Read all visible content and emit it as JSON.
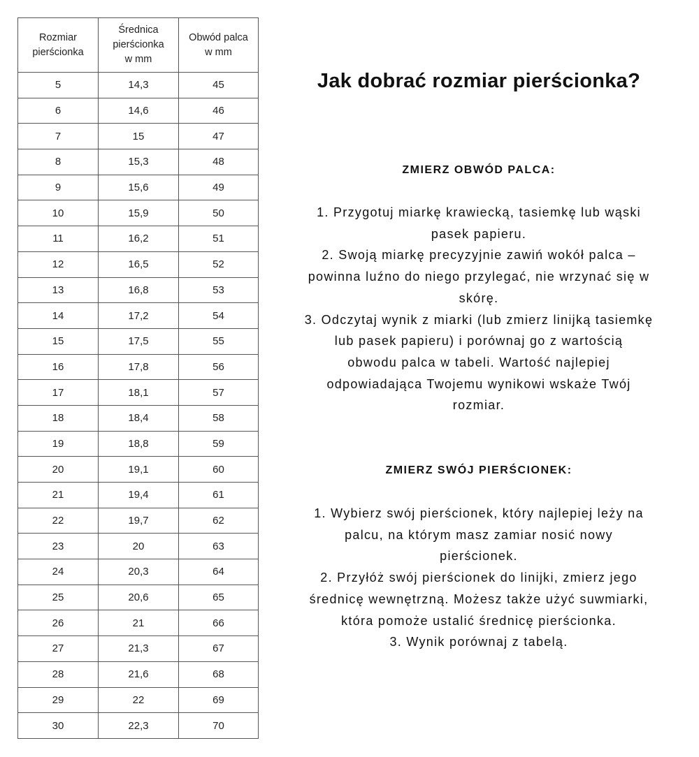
{
  "table": {
    "headers": [
      [
        "Rozmiar",
        "pierścionka"
      ],
      [
        "Średnica",
        "pierścionka",
        "w mm"
      ],
      [
        "Obwód palca",
        "w mm"
      ]
    ],
    "rows": [
      [
        "5",
        "14,3",
        "45"
      ],
      [
        "6",
        "14,6",
        "46"
      ],
      [
        "7",
        "15",
        "47"
      ],
      [
        "8",
        "15,3",
        "48"
      ],
      [
        "9",
        "15,6",
        "49"
      ],
      [
        "10",
        "15,9",
        "50"
      ],
      [
        "11",
        "16,2",
        "51"
      ],
      [
        "12",
        "16,5",
        "52"
      ],
      [
        "13",
        "16,8",
        "53"
      ],
      [
        "14",
        "17,2",
        "54"
      ],
      [
        "15",
        "17,5",
        "55"
      ],
      [
        "16",
        "17,8",
        "56"
      ],
      [
        "17",
        "18,1",
        "57"
      ],
      [
        "18",
        "18,4",
        "58"
      ],
      [
        "19",
        "18,8",
        "59"
      ],
      [
        "20",
        "19,1",
        "60"
      ],
      [
        "21",
        "19,4",
        "61"
      ],
      [
        "22",
        "19,7",
        "62"
      ],
      [
        "23",
        "20",
        "63"
      ],
      [
        "24",
        "20,3",
        "64"
      ],
      [
        "25",
        "20,6",
        "65"
      ],
      [
        "26",
        "21",
        "66"
      ],
      [
        "27",
        "21,3",
        "67"
      ],
      [
        "28",
        "21,6",
        "68"
      ],
      [
        "29",
        "22",
        "69"
      ],
      [
        "30",
        "22,3",
        "70"
      ]
    ]
  },
  "title": "Jak dobrać rozmiar pierścionka?",
  "section1": {
    "heading": "ZMIERZ OBWÓD PALCA:",
    "lines": [
      "1. Przygotuj miarkę krawiecką, tasiemkę lub wąski",
      "pasek papieru.",
      "2. Swoją miarkę precyzyjnie zawiń wokół palca –",
      "powinna luźno do niego przylegać, nie wrzynać się w",
      "skórę.",
      "3. Odczytaj wynik z miarki (lub zmierz linijką tasiemkę",
      "lub pasek papieru) i porównaj go z wartością",
      "obwodu palca w tabeli. Wartość najlepiej",
      "odpowiadająca Twojemu wynikowi wskaże Twój",
      "rozmiar."
    ]
  },
  "section2": {
    "heading": "ZMIERZ SWÓJ PIERŚCIONEK:",
    "lines": [
      "1.  Wybierz swój pierścionek, który najlepiej leży na",
      "palcu, na którym masz zamiar nosić nowy",
      "pierścionek.",
      "2. Przyłóż swój pierścionek do linijki, zmierz jego",
      "średnicę wewnętrzną. Możesz także użyć suwmiarki,",
      "która pomoże ustalić średnicę pierścionka.",
      "3. Wynik porównaj z tabelą."
    ]
  }
}
